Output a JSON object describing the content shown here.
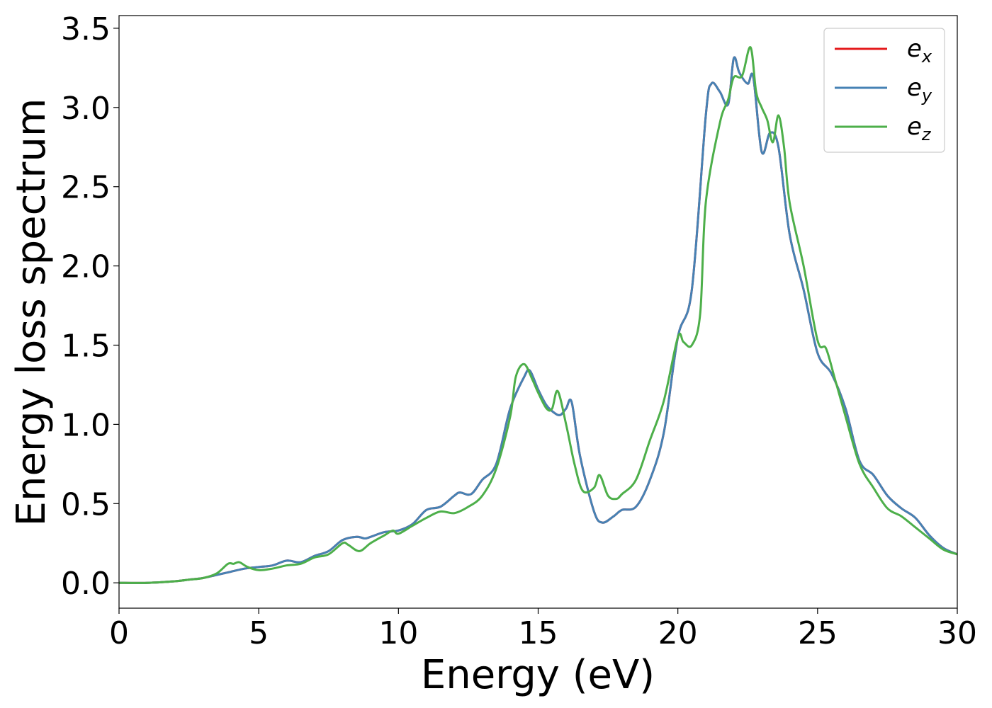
{
  "chart_data": {
    "type": "line",
    "xlabel": "Energy (eV)",
    "ylabel": "Energy loss spectrum",
    "xlim": [
      0,
      30
    ],
    "ylim": [
      -0.16,
      3.58
    ],
    "xticks": [
      0,
      5,
      10,
      15,
      20,
      25,
      30
    ],
    "xtick_labels": [
      "0",
      "5",
      "10",
      "15",
      "20",
      "25",
      "30"
    ],
    "yticks": [
      0.0,
      0.5,
      1.0,
      1.5,
      2.0,
      2.5,
      3.0,
      3.5
    ],
    "ytick_labels": [
      "0.0",
      "0.5",
      "1.0",
      "1.5",
      "2.0",
      "2.5",
      "3.0",
      "3.5"
    ],
    "grid": false,
    "legend_position": "top-right",
    "series": [
      {
        "name": "e",
        "subscript": "x",
        "color": "#e41a1c",
        "x": [
          0,
          1,
          2,
          2.5,
          3,
          3.5,
          4,
          4.5,
          5,
          5.5,
          6,
          6.5,
          7,
          7.5,
          8,
          8.5,
          8.8,
          9,
          9.5,
          10,
          10.5,
          11,
          11.5,
          12,
          12.2,
          12.6,
          13,
          13.5,
          14,
          14.5,
          14.7,
          15,
          15.3,
          15.6,
          15.8,
          16,
          16.2,
          16.5,
          17,
          17.3,
          17.7,
          18,
          18.5,
          19,
          19.5,
          20,
          20.5,
          21,
          21.2,
          21.5,
          21.8,
          22,
          22.2,
          22.5,
          22.7,
          23,
          23.3,
          23.6,
          24,
          24.5,
          25,
          25.5,
          26,
          26.5,
          27,
          27.5,
          28,
          28.5,
          29,
          29.5,
          30
        ],
        "y": [
          0.0,
          0.0,
          0.01,
          0.02,
          0.03,
          0.05,
          0.07,
          0.09,
          0.1,
          0.11,
          0.14,
          0.13,
          0.17,
          0.2,
          0.27,
          0.29,
          0.28,
          0.29,
          0.32,
          0.33,
          0.37,
          0.46,
          0.48,
          0.55,
          0.57,
          0.56,
          0.65,
          0.75,
          1.1,
          1.3,
          1.34,
          1.22,
          1.12,
          1.07,
          1.06,
          1.1,
          1.14,
          0.8,
          0.45,
          0.38,
          0.42,
          0.46,
          0.48,
          0.65,
          0.95,
          1.55,
          1.85,
          2.95,
          3.15,
          3.1,
          3.02,
          3.31,
          3.22,
          3.15,
          3.19,
          2.72,
          2.84,
          2.75,
          2.2,
          1.85,
          1.45,
          1.32,
          1.1,
          0.77,
          0.68,
          0.55,
          0.47,
          0.41,
          0.3,
          0.22,
          0.18
        ]
      },
      {
        "name": "e",
        "subscript": "y",
        "color": "#4682b4",
        "x": [
          0,
          1,
          2,
          2.5,
          3,
          3.5,
          4,
          4.5,
          5,
          5.5,
          6,
          6.5,
          7,
          7.5,
          8,
          8.5,
          8.8,
          9,
          9.5,
          10,
          10.5,
          11,
          11.5,
          12,
          12.2,
          12.6,
          13,
          13.5,
          14,
          14.5,
          14.7,
          15,
          15.3,
          15.6,
          15.8,
          16,
          16.2,
          16.5,
          17,
          17.3,
          17.7,
          18,
          18.5,
          19,
          19.5,
          20,
          20.5,
          21,
          21.2,
          21.5,
          21.8,
          22,
          22.2,
          22.5,
          22.7,
          23,
          23.3,
          23.6,
          24,
          24.5,
          25,
          25.5,
          26,
          26.5,
          27,
          27.5,
          28,
          28.5,
          29,
          29.5,
          30
        ],
        "y": [
          0.0,
          0.0,
          0.01,
          0.02,
          0.03,
          0.05,
          0.07,
          0.09,
          0.1,
          0.11,
          0.14,
          0.13,
          0.17,
          0.2,
          0.27,
          0.29,
          0.28,
          0.29,
          0.32,
          0.33,
          0.37,
          0.46,
          0.48,
          0.55,
          0.57,
          0.56,
          0.65,
          0.75,
          1.1,
          1.3,
          1.34,
          1.22,
          1.12,
          1.07,
          1.06,
          1.1,
          1.14,
          0.8,
          0.45,
          0.38,
          0.42,
          0.46,
          0.48,
          0.65,
          0.95,
          1.55,
          1.85,
          2.95,
          3.15,
          3.1,
          3.02,
          3.31,
          3.22,
          3.15,
          3.19,
          2.72,
          2.84,
          2.75,
          2.2,
          1.85,
          1.45,
          1.32,
          1.1,
          0.77,
          0.68,
          0.55,
          0.47,
          0.41,
          0.3,
          0.22,
          0.18
        ]
      },
      {
        "name": "e",
        "subscript": "z",
        "color": "#4daf4a",
        "x": [
          0,
          1,
          2,
          2.5,
          3,
          3.5,
          3.9,
          4.1,
          4.3,
          4.6,
          5,
          5.5,
          6,
          6.5,
          7,
          7.5,
          8,
          8.2,
          8.6,
          9,
          9.5,
          9.8,
          10,
          10.5,
          11,
          11.5,
          12,
          12.5,
          13,
          13.5,
          14,
          14.2,
          14.5,
          14.8,
          15,
          15.3,
          15.5,
          15.7,
          16,
          16.3,
          16.6,
          17,
          17.2,
          17.5,
          17.8,
          18,
          18.5,
          19,
          19.5,
          20,
          20.2,
          20.5,
          20.8,
          21,
          21.5,
          21.8,
          22,
          22.3,
          22.6,
          22.8,
          23,
          23.2,
          23.4,
          23.6,
          23.8,
          24,
          24.5,
          25,
          25.3,
          25.6,
          26,
          26.5,
          27,
          27.5,
          28,
          28.5,
          29,
          29.5,
          30
        ],
        "y": [
          0.0,
          0.0,
          0.01,
          0.02,
          0.03,
          0.06,
          0.12,
          0.12,
          0.13,
          0.1,
          0.08,
          0.09,
          0.11,
          0.12,
          0.16,
          0.18,
          0.25,
          0.24,
          0.2,
          0.25,
          0.3,
          0.33,
          0.31,
          0.36,
          0.41,
          0.45,
          0.44,
          0.48,
          0.55,
          0.72,
          1.05,
          1.3,
          1.38,
          1.28,
          1.2,
          1.1,
          1.1,
          1.21,
          1.0,
          0.75,
          0.58,
          0.6,
          0.68,
          0.55,
          0.53,
          0.56,
          0.65,
          0.9,
          1.15,
          1.55,
          1.52,
          1.5,
          1.7,
          2.4,
          2.9,
          3.05,
          3.19,
          3.2,
          3.38,
          3.1,
          3.0,
          2.92,
          2.78,
          2.95,
          2.75,
          2.4,
          2.0,
          1.53,
          1.48,
          1.3,
          1.05,
          0.75,
          0.6,
          0.47,
          0.42,
          0.35,
          0.28,
          0.21,
          0.18
        ]
      }
    ]
  }
}
